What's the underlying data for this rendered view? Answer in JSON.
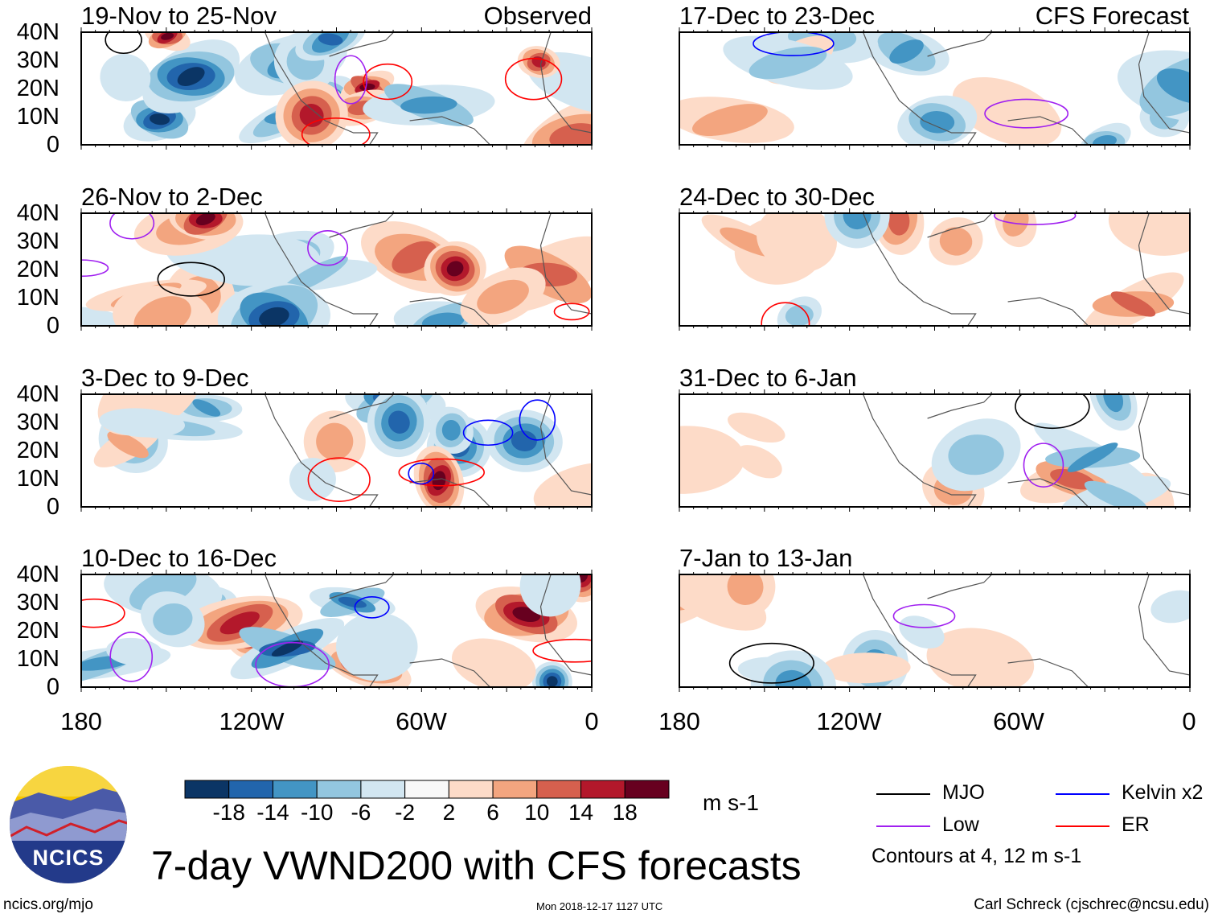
{
  "title": "7-day VWND200 with CFS forecasts",
  "website": "ncics.org/mjo",
  "timestamp": "Mon 2018-12-17 1127 UTC",
  "author": "Carl Schreck (cjschrec@ncsu.edu)",
  "logo_text": "NCICS",
  "observed_label": "Observed",
  "forecast_label": "CFS Forecast",
  "lat_labels": [
    "40N",
    "30N",
    "20N",
    "10N",
    "0"
  ],
  "lon_labels": [
    "180",
    "120W",
    "60W",
    "0"
  ],
  "panels_left": [
    {
      "title": "19-Nov to 25-Nov"
    },
    {
      "title": "26-Nov to 2-Dec"
    },
    {
      "title": "3-Dec to 9-Dec"
    },
    {
      "title": "10-Dec to 16-Dec"
    }
  ],
  "panels_right": [
    {
      "title": "17-Dec to 23-Dec"
    },
    {
      "title": "24-Dec to 30-Dec"
    },
    {
      "title": "31-Dec to 6-Jan"
    },
    {
      "title": "7-Jan to 13-Jan"
    }
  ],
  "colorbar": {
    "units": "m s-1",
    "labels": [
      "-18",
      "-14",
      "-10",
      "-6",
      "-2",
      "2",
      "6",
      "10",
      "14",
      "18"
    ],
    "colors": [
      "#0b3565",
      "#2265ac",
      "#4395c4",
      "#93c6df",
      "#d2e6f1",
      "#f8f8f8",
      "#fddbc8",
      "#f3a57f",
      "#d6604e",
      "#b3182b",
      "#67001f"
    ]
  },
  "legend": {
    "items": [
      {
        "label": "MJO",
        "color": "#000000"
      },
      {
        "label": "Kelvin x2",
        "color": "#0000ff"
      },
      {
        "label": "Low",
        "color": "#a020f0"
      },
      {
        "label": "ER",
        "color": "#ff0000"
      }
    ],
    "note": "Contours at 4, 12 m s-1"
  }
}
